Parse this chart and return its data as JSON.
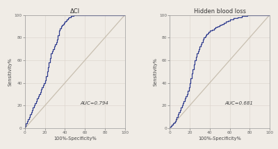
{
  "title1": "ΔCI",
  "title2": "Hidden blood loss",
  "auc1": "AUC=0.794",
  "auc2": "AUC=0.681",
  "xlabel": "100%-Specificity%",
  "ylabel": "Sensitivity%",
  "tick_labels": [
    0,
    20,
    40,
    60,
    80,
    100
  ],
  "curve_color": "#2e3b8e",
  "diag_color": "#c8bfb0",
  "bg_color": "#f0ece6",
  "line_width": 0.9,
  "diag_lw": 0.9,
  "roc1_x": [
    0,
    0,
    1,
    1,
    2,
    2,
    3,
    3,
    4,
    4,
    5,
    5,
    6,
    6,
    7,
    7,
    8,
    8,
    9,
    9,
    10,
    10,
    11,
    11,
    12,
    12,
    13,
    13,
    14,
    14,
    15,
    15,
    16,
    16,
    17,
    17,
    18,
    18,
    19,
    19,
    20,
    20,
    21,
    21,
    22,
    22,
    23,
    23,
    24,
    24,
    25,
    25,
    26,
    26,
    27,
    27,
    28,
    28,
    29,
    29,
    30,
    30,
    31,
    31,
    32,
    32,
    33,
    33,
    34,
    34,
    35,
    35,
    36,
    36,
    37,
    37,
    38,
    38,
    39,
    39,
    40,
    40,
    41,
    41,
    42,
    42,
    43,
    43,
    44,
    44,
    45,
    45,
    46,
    46,
    47,
    47,
    48,
    48,
    49,
    49,
    50,
    50,
    51,
    51,
    52,
    52,
    53,
    53,
    54,
    54,
    55,
    55,
    56,
    56,
    57,
    57,
    58,
    58,
    59,
    59,
    60,
    60,
    61,
    61,
    62,
    62,
    63,
    63,
    64,
    64,
    65,
    65,
    66,
    66,
    100
  ],
  "roc1_y": [
    0,
    2,
    2,
    4,
    4,
    6,
    6,
    8,
    8,
    10,
    10,
    12,
    12,
    14,
    14,
    16,
    16,
    18,
    18,
    20,
    20,
    22,
    22,
    24,
    24,
    26,
    26,
    28,
    28,
    30,
    30,
    32,
    32,
    34,
    34,
    36,
    36,
    38,
    38,
    40,
    40,
    42,
    42,
    46,
    46,
    50,
    50,
    54,
    54,
    58,
    58,
    62,
    62,
    66,
    66,
    68,
    68,
    70,
    70,
    72,
    72,
    74,
    74,
    76,
    76,
    78,
    78,
    82,
    82,
    86,
    86,
    88,
    88,
    90,
    90,
    91,
    91,
    92,
    92,
    93,
    93,
    94,
    94,
    95,
    95,
    96,
    96,
    97,
    97,
    98,
    98,
    98,
    98,
    99,
    99,
    99,
    99,
    99,
    99,
    100,
    100,
    100,
    100,
    100,
    100,
    100,
    100,
    100,
    100,
    100,
    100,
    100,
    100,
    100,
    100,
    100,
    100,
    100,
    100,
    100,
    100,
    100,
    100,
    100,
    100,
    100,
    100,
    100,
    100,
    100,
    100,
    100,
    100,
    100,
    100
  ],
  "roc2_x": [
    0,
    0,
    1,
    1,
    2,
    2,
    3,
    3,
    4,
    4,
    5,
    5,
    6,
    6,
    7,
    7,
    8,
    8,
    9,
    9,
    10,
    10,
    11,
    11,
    12,
    12,
    13,
    13,
    14,
    14,
    15,
    15,
    16,
    16,
    17,
    17,
    18,
    18,
    19,
    19,
    20,
    20,
    21,
    21,
    22,
    22,
    23,
    23,
    24,
    24,
    25,
    25,
    26,
    26,
    27,
    27,
    28,
    28,
    29,
    29,
    30,
    30,
    31,
    31,
    32,
    32,
    33,
    33,
    34,
    34,
    35,
    35,
    36,
    36,
    37,
    37,
    38,
    38,
    39,
    39,
    40,
    40,
    42,
    42,
    44,
    44,
    46,
    46,
    48,
    48,
    50,
    50,
    52,
    52,
    54,
    54,
    56,
    56,
    58,
    58,
    60,
    60,
    62,
    62,
    64,
    64,
    66,
    66,
    68,
    68,
    70,
    70,
    72,
    72,
    74,
    74,
    76,
    76,
    78,
    78,
    80,
    80,
    82,
    82,
    84,
    84,
    86,
    86,
    88,
    88,
    90,
    90,
    92,
    92,
    94,
    94,
    96,
    96,
    98,
    98,
    100
  ],
  "roc2_y": [
    0,
    1,
    1,
    2,
    2,
    3,
    3,
    4,
    4,
    5,
    5,
    6,
    6,
    8,
    8,
    10,
    10,
    12,
    12,
    14,
    14,
    16,
    16,
    18,
    18,
    20,
    20,
    22,
    22,
    24,
    24,
    26,
    26,
    28,
    28,
    30,
    30,
    33,
    33,
    36,
    36,
    40,
    40,
    44,
    44,
    48,
    48,
    52,
    52,
    56,
    56,
    60,
    60,
    63,
    63,
    66,
    66,
    68,
    68,
    70,
    70,
    72,
    72,
    74,
    74,
    76,
    76,
    78,
    78,
    80,
    80,
    81,
    81,
    82,
    82,
    83,
    83,
    84,
    84,
    85,
    85,
    86,
    86,
    87,
    87,
    88,
    88,
    89,
    89,
    90,
    90,
    91,
    91,
    92,
    92,
    93,
    93,
    94,
    94,
    95,
    95,
    96,
    96,
    96,
    96,
    97,
    97,
    97,
    97,
    98,
    98,
    98,
    98,
    99,
    99,
    99,
    99,
    99,
    99,
    100,
    100,
    100,
    100,
    100,
    100,
    100,
    100,
    100,
    100,
    100,
    100,
    100,
    100,
    100,
    100,
    100,
    100,
    100,
    100,
    100,
    100
  ]
}
